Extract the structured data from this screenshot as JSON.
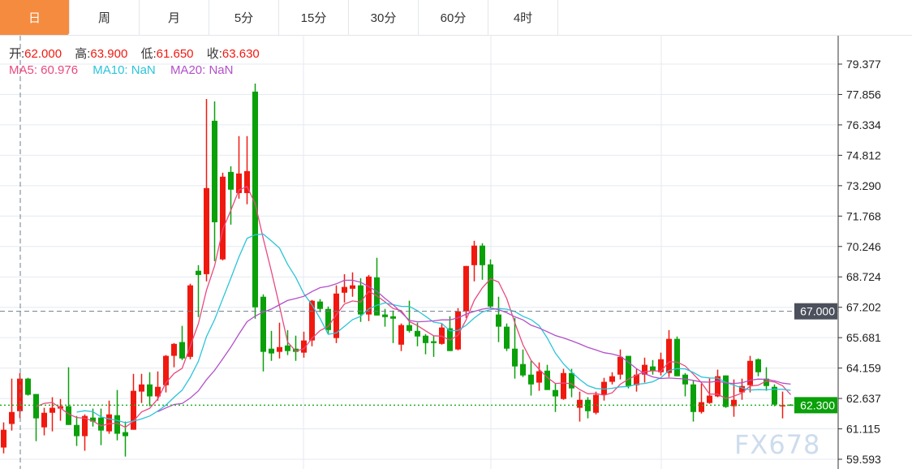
{
  "tabs": [
    {
      "label": "日",
      "active": true
    },
    {
      "label": "周"
    },
    {
      "label": "月"
    },
    {
      "label": "5分"
    },
    {
      "label": "15分"
    },
    {
      "label": "30分"
    },
    {
      "label": "60分"
    },
    {
      "label": "4时"
    }
  ],
  "legend": {
    "open_label": "开:",
    "open": "62.000",
    "high_label": "高:",
    "high": "63.900",
    "low_label": "低:",
    "low": "61.650",
    "close_label": "收:",
    "close": "63.630",
    "ma5": "MA5: 60.976",
    "ma10": "MA10: NaN",
    "ma20": "MA20: NaN"
  },
  "watermark": "FX678",
  "chart_data": {
    "type": "candlestick",
    "candle_format": [
      "open",
      "high",
      "low",
      "close"
    ],
    "y_ticks": [
      "79.377",
      "77.856",
      "76.334",
      "74.812",
      "73.290",
      "71.768",
      "70.246",
      "68.724",
      "67.202",
      "65.681",
      "64.159",
      "62.637",
      "61.115",
      "59.593"
    ],
    "ylim": [
      59.593,
      79.377
    ],
    "grid": true,
    "crosshair_price": "67.000",
    "last_price": "62.300",
    "up_color": "#f0190f",
    "down_color": "#0aa00a",
    "ma_colors": {
      "ma5": "#e9497f",
      "ma10": "#2bc4d9",
      "ma20": "#b24fc9"
    },
    "candles": [
      [
        60.18,
        61.44,
        59.89,
        61.07
      ],
      [
        61.36,
        63.63,
        61.03,
        61.96
      ],
      [
        62.0,
        63.9,
        61.65,
        63.63
      ],
      [
        63.63,
        63.67,
        62.78,
        62.82
      ],
      [
        62.86,
        62.86,
        60.5,
        61.64
      ],
      [
        61.19,
        62.17,
        60.79,
        61.92
      ],
      [
        61.92,
        62.7,
        60.99,
        62.17
      ],
      [
        62.13,
        62.61,
        61.52,
        62.25
      ],
      [
        62.25,
        64.2,
        61.31,
        61.31
      ],
      [
        61.31,
        61.76,
        60.26,
        60.75
      ],
      [
        60.75,
        61.84,
        60.02,
        61.76
      ],
      [
        61.68,
        62.13,
        61.23,
        61.48
      ],
      [
        61.68,
        62.13,
        60.3,
        61.03
      ],
      [
        60.99,
        62.53,
        60.87,
        61.84
      ],
      [
        61.8,
        63.06,
        60.54,
        60.87
      ],
      [
        60.95,
        61.48,
        59.73,
        60.75
      ],
      [
        61.07,
        63.87,
        61.07,
        63.02
      ],
      [
        62.98,
        63.87,
        62.41,
        63.34
      ],
      [
        63.34,
        63.95,
        62.25,
        62.74
      ],
      [
        62.74,
        63.99,
        62.53,
        63.22
      ],
      [
        63.3,
        64.81,
        62.94,
        64.77
      ],
      [
        64.77,
        65.41,
        64.2,
        65.37
      ],
      [
        65.46,
        66.27,
        64.56,
        64.64
      ],
      [
        64.72,
        68.38,
        64.6,
        68.3
      ],
      [
        69.03,
        69.31,
        66.71,
        68.82
      ],
      [
        68.86,
        77.63,
        68.5,
        73.17
      ],
      [
        76.54,
        77.51,
        69.51,
        71.46
      ],
      [
        69.6,
        73.94,
        69.55,
        73.74
      ],
      [
        73.98,
        74.26,
        71.34,
        73.09
      ],
      [
        72.92,
        75.77,
        72.64,
        73.9
      ],
      [
        72.92,
        75.77,
        72.36,
        74.02
      ],
      [
        78.0,
        78.4,
        66.63,
        67.2
      ],
      [
        67.73,
        67.85,
        63.99,
        64.97
      ],
      [
        65.13,
        66.02,
        64.52,
        64.89
      ],
      [
        64.97,
        66.43,
        64.64,
        65.21
      ],
      [
        65.29,
        66.06,
        64.81,
        65.01
      ],
      [
        65.13,
        65.78,
        64.52,
        64.97
      ],
      [
        64.93,
        65.98,
        64.68,
        65.54
      ],
      [
        65.54,
        67.57,
        65.25,
        67.53
      ],
      [
        67.49,
        67.61,
        66.96,
        67.12
      ],
      [
        67.12,
        67.24,
        65.86,
        66.06
      ],
      [
        65.66,
        68.3,
        65.41,
        67.89
      ],
      [
        67.93,
        68.86,
        67.44,
        68.22
      ],
      [
        68.13,
        68.95,
        67.73,
        68.3
      ],
      [
        68.3,
        68.66,
        66.47,
        66.84
      ],
      [
        66.84,
        68.82,
        66.51,
        68.74
      ],
      [
        68.7,
        69.68,
        66.79,
        66.79
      ],
      [
        66.84,
        67.12,
        66.23,
        66.71
      ],
      [
        66.75,
        67.04,
        65.41,
        66.63
      ],
      [
        65.33,
        66.39,
        65.01,
        66.31
      ],
      [
        66.31,
        67.53,
        65.94,
        66.02
      ],
      [
        66.02,
        66.43,
        65.25,
        65.74
      ],
      [
        65.78,
        65.86,
        64.85,
        65.41
      ],
      [
        65.5,
        65.78,
        64.72,
        65.41
      ],
      [
        65.37,
        66.39,
        65.33,
        66.19
      ],
      [
        66.15,
        66.75,
        65.01,
        65.01
      ],
      [
        65.09,
        67.16,
        65.05,
        67.0
      ],
      [
        67.0,
        69.27,
        66.67,
        69.27
      ],
      [
        69.31,
        70.53,
        68.5,
        70.29
      ],
      [
        70.29,
        70.41,
        68.58,
        69.31
      ],
      [
        69.35,
        69.6,
        67.16,
        67.24
      ],
      [
        66.84,
        67.73,
        65.46,
        66.23
      ],
      [
        66.23,
        66.39,
        65.01,
        65.13
      ],
      [
        65.13,
        66.67,
        63.63,
        64.24
      ],
      [
        64.36,
        65.09,
        63.71,
        63.79
      ],
      [
        63.83,
        64.52,
        62.78,
        63.34
      ],
      [
        63.43,
        64.44,
        63.02,
        64.0
      ],
      [
        64.03,
        64.32,
        63.06,
        63.06
      ],
      [
        63.06,
        63.38,
        61.96,
        62.74
      ],
      [
        62.61,
        64.12,
        62.57,
        63.91
      ],
      [
        63.91,
        64.12,
        62.7,
        63.14
      ],
      [
        62.17,
        62.98,
        61.48,
        62.57
      ],
      [
        62.57,
        62.7,
        61.64,
        62.0
      ],
      [
        61.92,
        62.98,
        61.84,
        62.82
      ],
      [
        62.82,
        63.67,
        62.53,
        63.47
      ],
      [
        63.47,
        63.95,
        63.34,
        63.75
      ],
      [
        63.83,
        65.09,
        63.59,
        64.72
      ],
      [
        64.77,
        64.77,
        63.14,
        63.26
      ],
      [
        63.3,
        64.12,
        62.98,
        63.83
      ],
      [
        63.83,
        64.68,
        63.43,
        64.32
      ],
      [
        64.24,
        64.56,
        63.83,
        64.0
      ],
      [
        63.95,
        64.93,
        63.79,
        64.6
      ],
      [
        63.91,
        66.06,
        63.71,
        65.62
      ],
      [
        65.62,
        65.74,
        63.75,
        63.75
      ],
      [
        63.83,
        63.91,
        62.74,
        63.34
      ],
      [
        63.34,
        63.51,
        61.48,
        61.96
      ],
      [
        61.96,
        63.38,
        61.88,
        62.45
      ],
      [
        62.41,
        63.63,
        62.37,
        62.78
      ],
      [
        62.74,
        64.08,
        62.7,
        63.75
      ],
      [
        63.79,
        63.79,
        62.17,
        62.21
      ],
      [
        62.25,
        63.59,
        61.72,
        62.57
      ],
      [
        62.94,
        63.63,
        62.57,
        63.26
      ],
      [
        63.3,
        64.77,
        62.94,
        64.52
      ],
      [
        64.6,
        64.64,
        63.75,
        63.95
      ],
      [
        63.63,
        64.2,
        63.02,
        63.26
      ],
      [
        63.22,
        63.34,
        62.25,
        62.33
      ],
      [
        62.28,
        62.98,
        61.64,
        62.3
      ],
      [
        62.33,
        62.35,
        62.29,
        62.3
      ]
    ]
  }
}
